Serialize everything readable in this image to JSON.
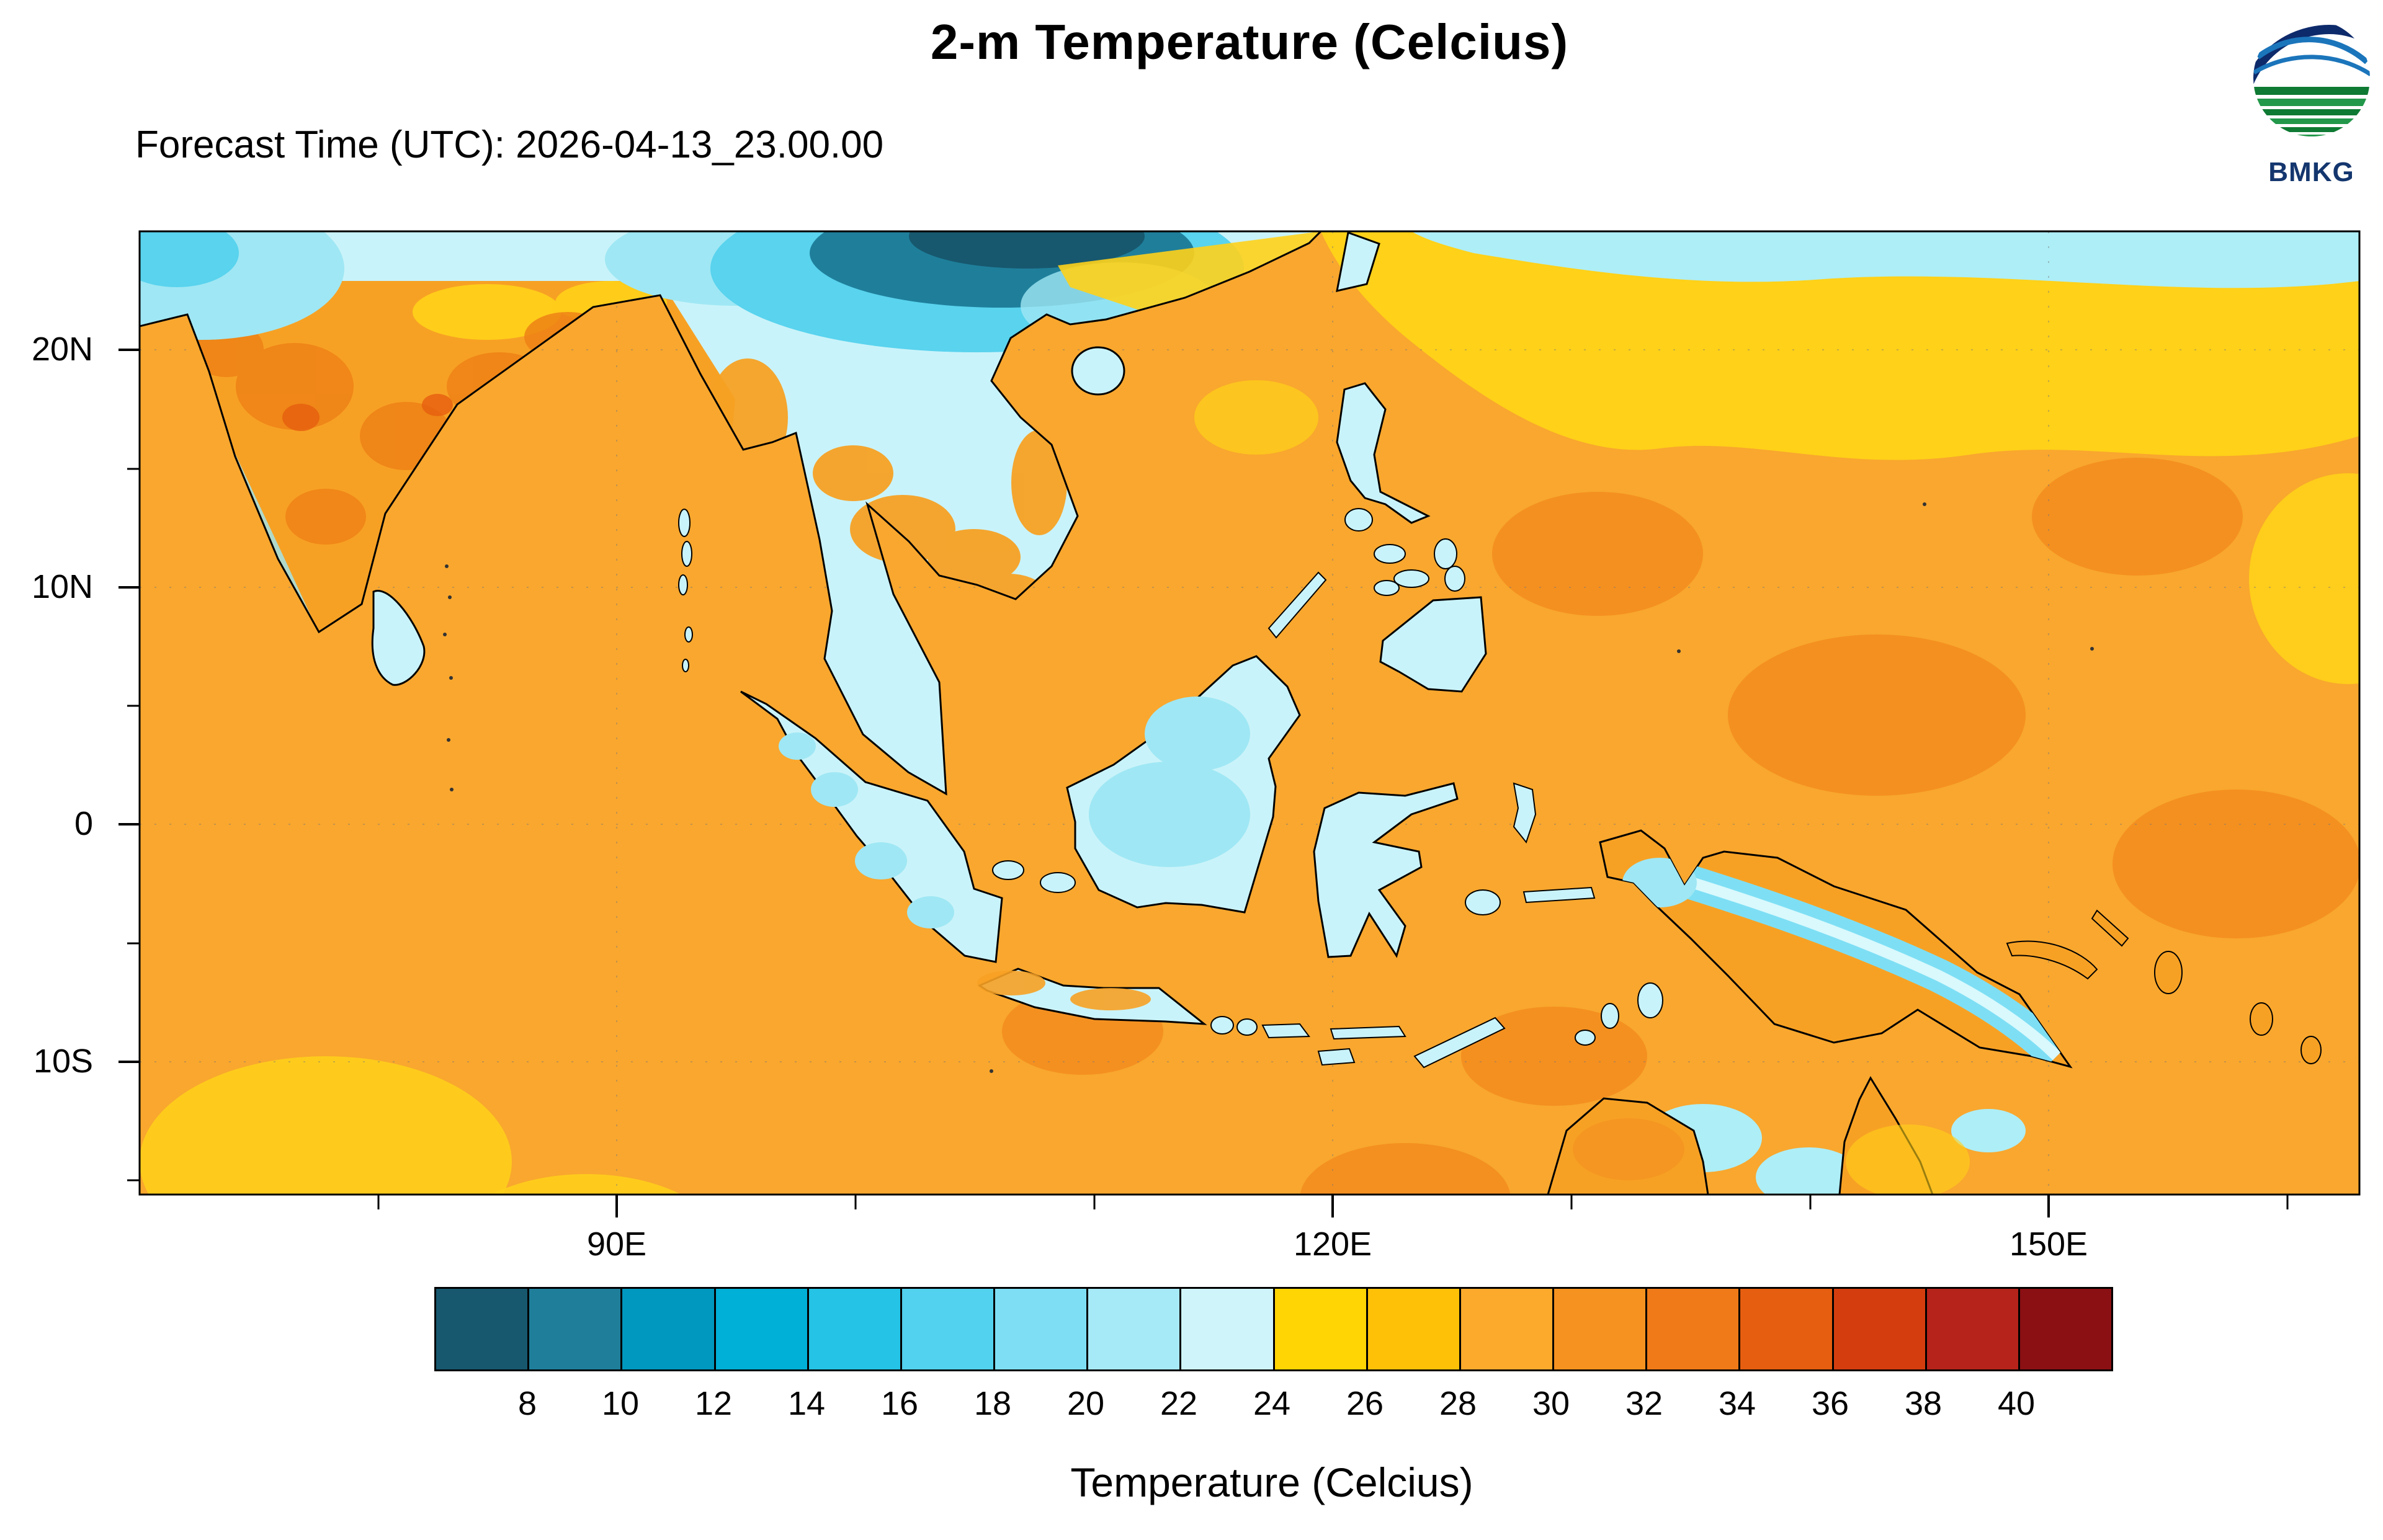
{
  "header": {
    "title": "2-m Temperature (Celcius)",
    "subtitle": "Forecast Time (UTC): 2026-04-13_23.00.00"
  },
  "logo": {
    "label": "BMKG"
  },
  "map_axes": {
    "y_labels": [
      "20N",
      "10N",
      "0",
      "10S"
    ],
    "x_labels": [
      "90E",
      "120E",
      "150E"
    ]
  },
  "colorbar": {
    "title": "Temperature (Celcius)",
    "tick_labels": [
      "8",
      "10",
      "12",
      "14",
      "16",
      "18",
      "20",
      "22",
      "24",
      "26",
      "28",
      "30",
      "32",
      "34",
      "36",
      "38",
      "40"
    ],
    "colors": [
      "#17586e",
      "#1f7f9b",
      "#0098bf",
      "#00b0d6",
      "#25c3e6",
      "#52d2ee",
      "#7edff4",
      "#a6eaf8",
      "#cff5fb",
      "#ffd503",
      "#ffc107",
      "#fbaa2c",
      "#f6921f",
      "#f07a17",
      "#e65e0f",
      "#d43e0e",
      "#b5231a",
      "#8a1013"
    ]
  },
  "chart_data": {
    "type": "heatmap",
    "title": "2-m Temperature (Celcius)",
    "subtitle": "Forecast Time (UTC): 2026-04-13_23.00.00",
    "x_tick_labels": [
      "90E",
      "120E",
      "150E"
    ],
    "y_tick_labels": [
      "20N",
      "10N",
      "0",
      "10S"
    ],
    "colorbar_label": "Temperature (Celcius)",
    "colorbar_levels": [
      8,
      10,
      12,
      14,
      16,
      18,
      20,
      22,
      24,
      26,
      28,
      30,
      32,
      34,
      36,
      38,
      40
    ],
    "legend_position": "bottom",
    "field_summary": "Sea mostly 28-30C (orange) with 30-32C patches; 24-28C (yellow) bands in NW Pacific and SE Indian Ocean; land interiors (Sumatra, Borneo, Sulawesi, Indochina) 18-24C (cyan); Tibetan Plateau 8-16C (dark teal); New Guinea highlands cyan spine"
  }
}
